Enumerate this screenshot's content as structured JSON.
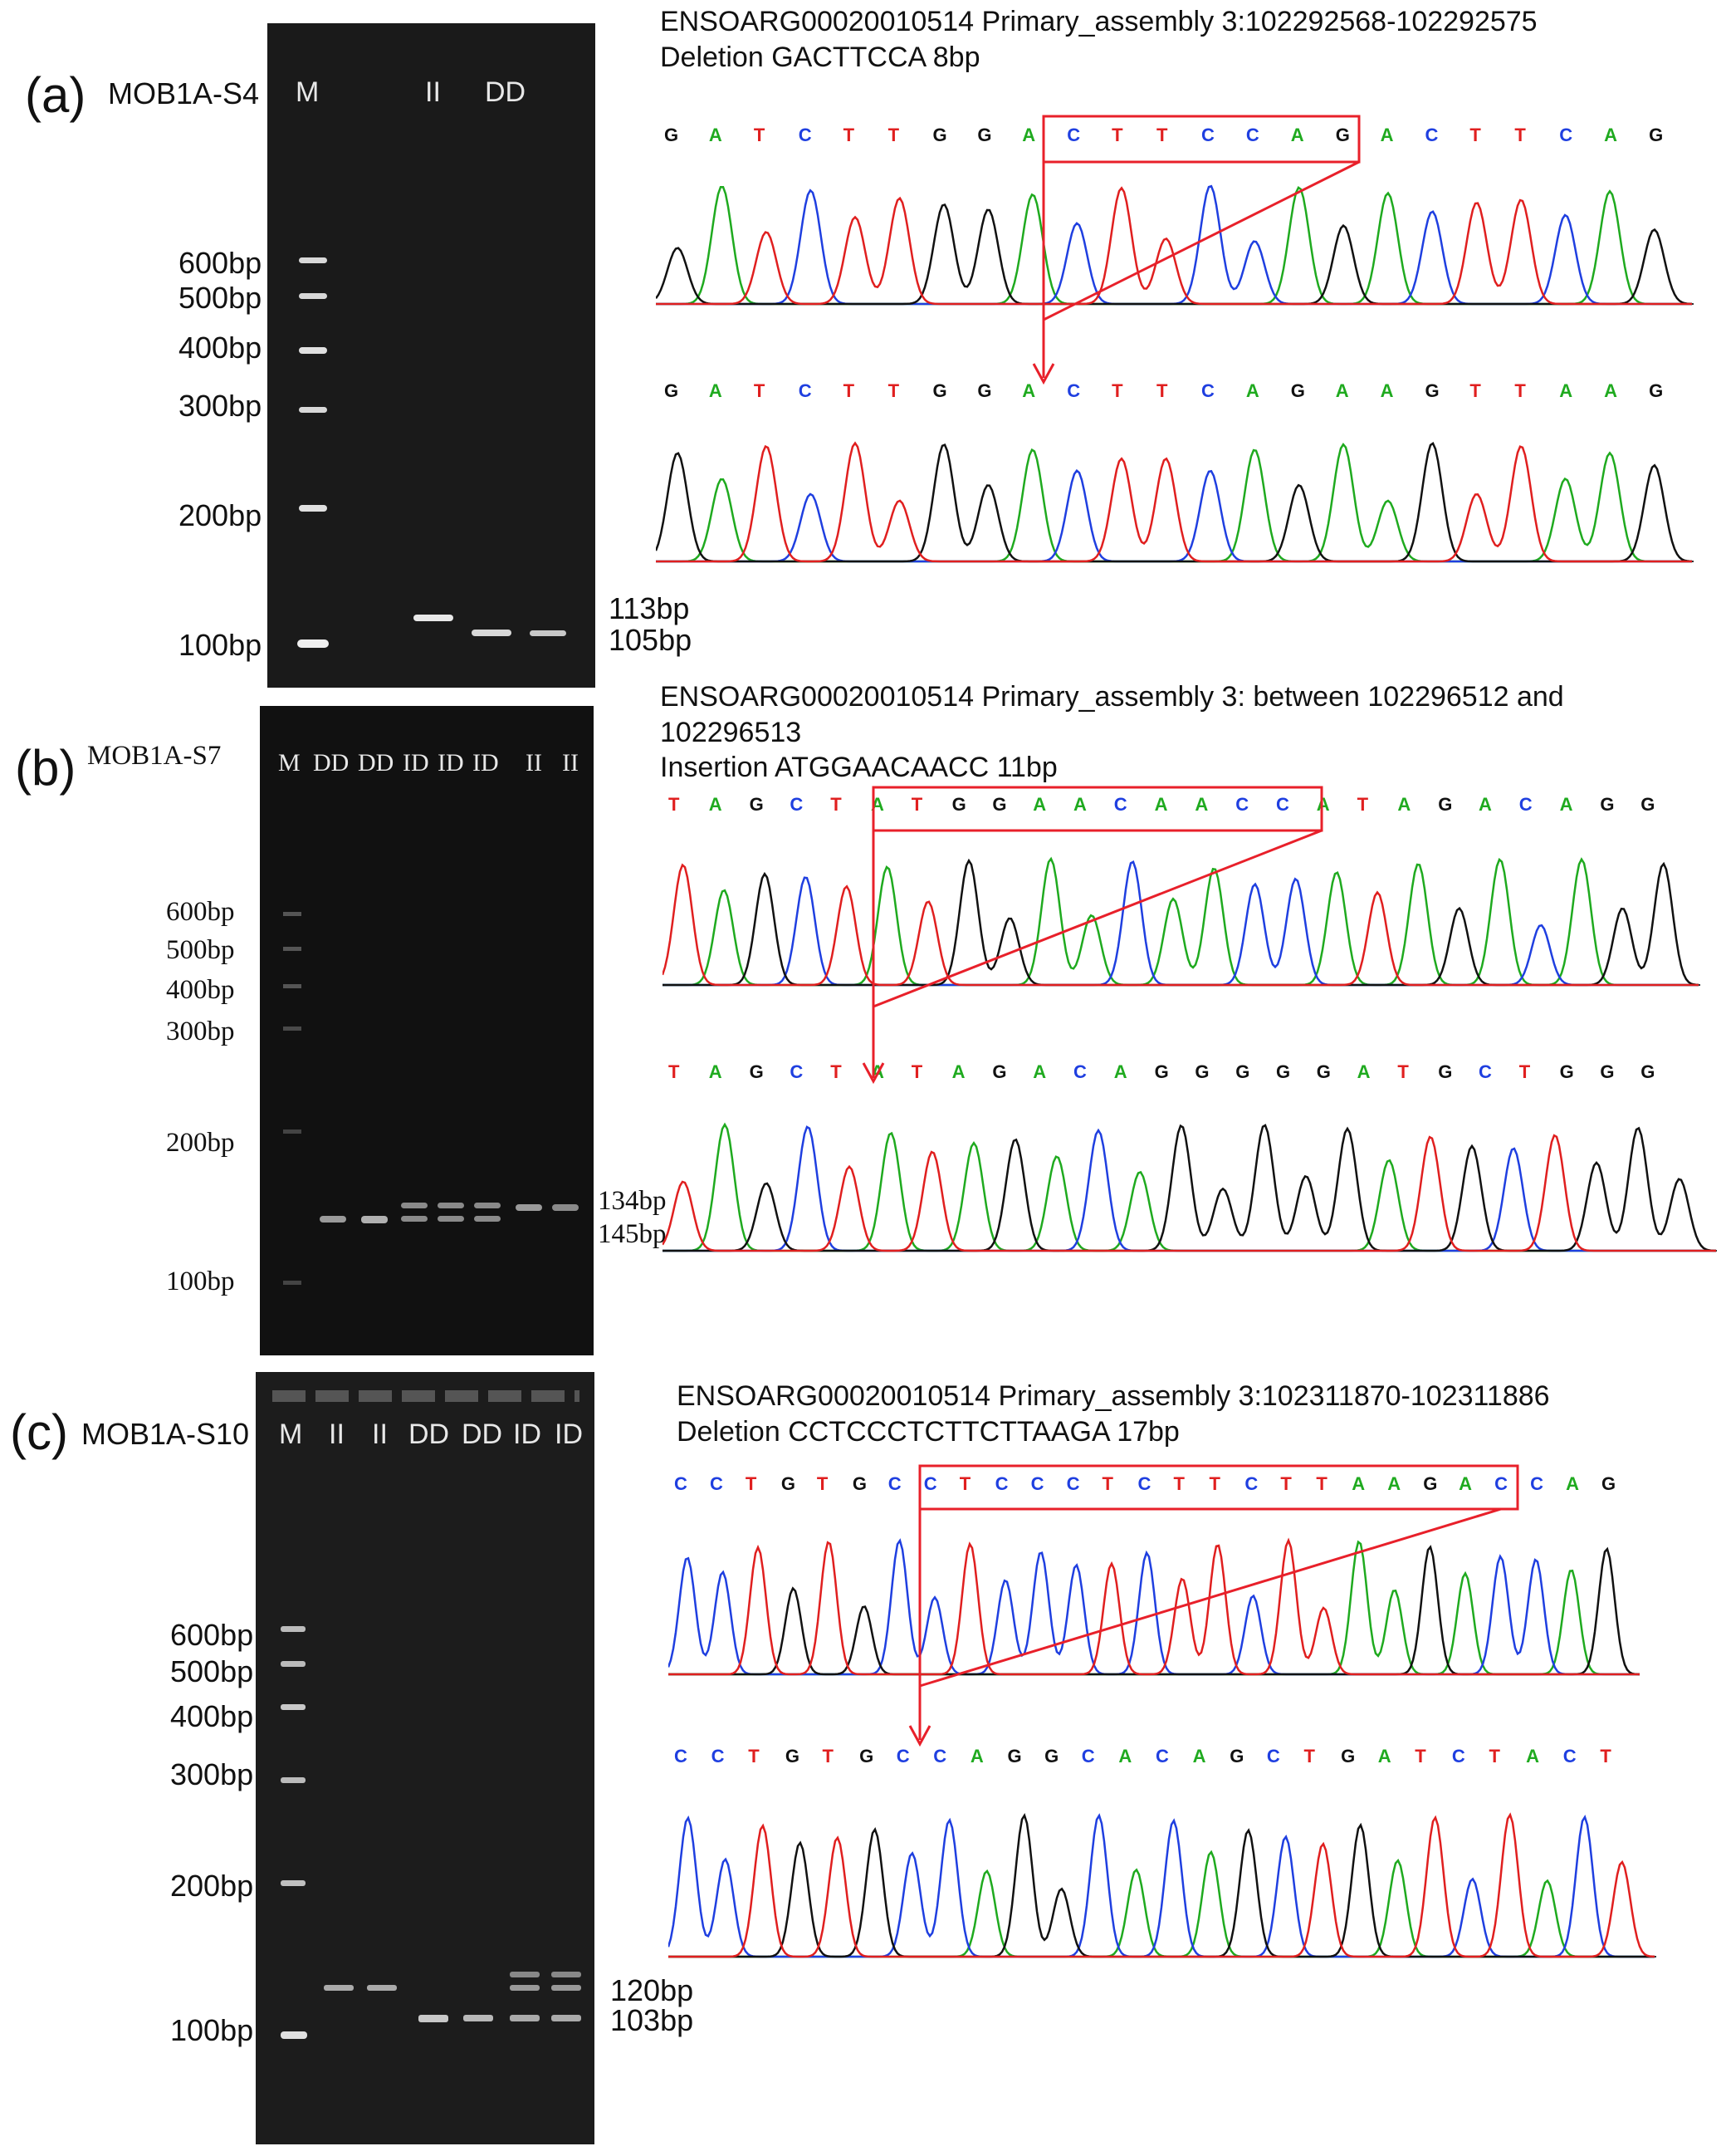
{
  "panels": [
    {
      "id": "a",
      "panel_label": "(a)",
      "locus": "MOB1A-S4",
      "gel": {
        "lanes": [
          "M",
          "",
          "",
          "II",
          "DD"
        ],
        "ladder": [
          "600bp",
          "500bp",
          "400bp",
          "300bp",
          "200bp",
          "100bp"
        ],
        "bands": [
          "113bp",
          "105bp"
        ]
      },
      "info": [
        "ENSOARG00020010514 Primary_assembly 3:102292568-102292575",
        "Deletion  GACTTCCA  8bp"
      ],
      "seq_top": "GATCTTGGACTTCCAGACTTCAG",
      "seq_bottom": "GATCTTGGACTTCAGAAGTTAAG"
    },
    {
      "id": "b",
      "panel_label": "(b)",
      "locus": "MOB1A-S7",
      "gel": {
        "lanes": [
          "M",
          "DD",
          "DD",
          "ID",
          "ID",
          "ID",
          "II",
          "II"
        ],
        "ladder": [
          "600bp",
          "500bp",
          "400bp",
          "300bp",
          "200bp",
          "100bp"
        ],
        "bands": [
          "134bp",
          "145bp"
        ]
      },
      "info": [
        "ENSOARG00020010514 Primary_assembly 3: between 102296512 and",
        "102296513",
        "Insertion  ATGGAACAACC  11bp"
      ],
      "seq_top": "TAGCTATGGAACAACCATAGACAGG",
      "seq_bottom": "TAGCTATAGACAGGGGGATGCTGGG"
    },
    {
      "id": "c",
      "panel_label": "(c)",
      "locus": "MOB1A-S10",
      "gel": {
        "lanes": [
          "M",
          "II",
          "II",
          "DD",
          "DD",
          "ID",
          "ID"
        ],
        "ladder": [
          "600bp",
          "500bp",
          "400bp",
          "300bp",
          "200bp",
          "100bp"
        ],
        "bands": [
          "120bp",
          "103bp"
        ]
      },
      "info": [
        "ENSOARG00020010514 Primary_assembly 3:102311870-102311886",
        "Deletion  CCTCCCTCTTCTTAAGA  17bp"
      ],
      "seq_top": "CCTGTGCCTCCCTCTTCTTAAGACCAG",
      "seq_bottom": "CCTGTGCCAGGCACAGCTGATCTACT"
    }
  ],
  "colors": {
    "A": "#1faa1f",
    "C": "#1f3fe0",
    "G": "#111111",
    "T": "#e01f1f",
    "highlight": "#e8202a"
  }
}
